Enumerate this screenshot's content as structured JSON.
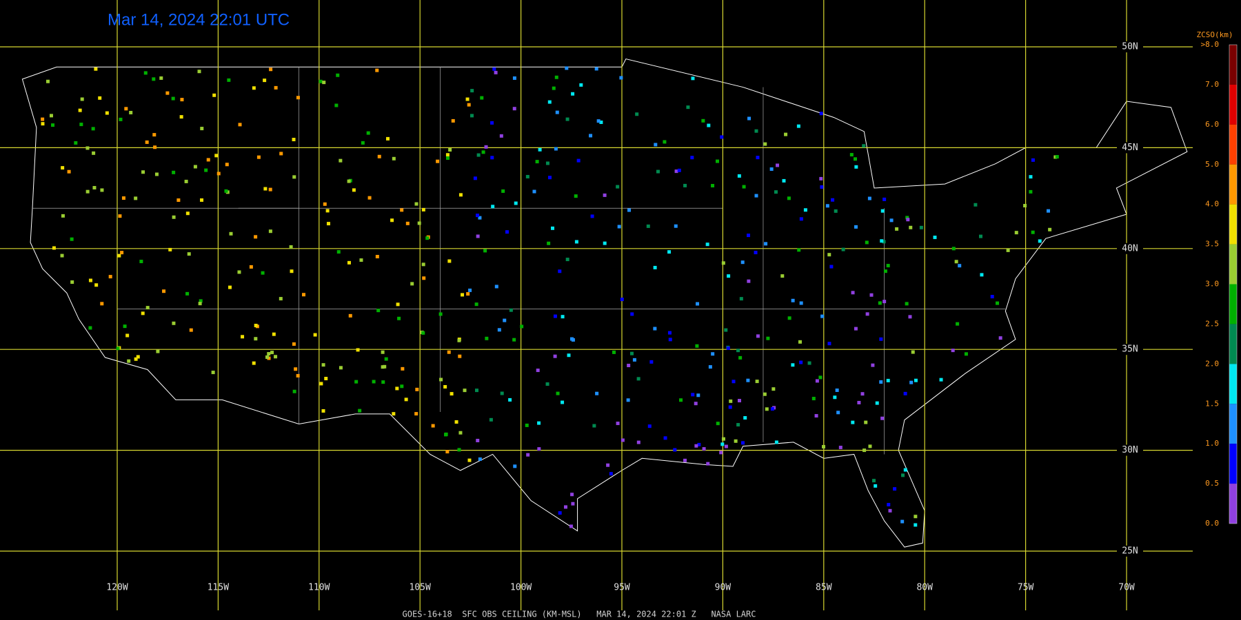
{
  "title": "Mar 14, 2024 22:01 UTC",
  "caption": "GOES-16+18  SFC OBS CEILING (KM-MSL)   MAR 14, 2024 22:01 Z   NASA LARC",
  "lat_labels": [
    "50N",
    "45N",
    "40N",
    "35N",
    "30N",
    "25N"
  ],
  "lon_labels": [
    "120W",
    "115W",
    "110W",
    "105W",
    "100W",
    "95W",
    "90W",
    "85W",
    "80W",
    "75W",
    "70W"
  ],
  "colorbar": {
    "title": "ZCSO(km)",
    "labels": [
      ">8.0",
      "7.0",
      "6.0",
      "5.0",
      "4.0",
      "3.5",
      "3.0",
      "2.5",
      "2.0",
      "1.5",
      "1.0",
      "0.5",
      "0.0"
    ],
    "colors": [
      "#7a0000",
      "#e00000",
      "#ff4000",
      "#ff9900",
      "#f0e000",
      "#9acd32",
      "#00b000",
      "#008a50",
      "#00e8f0",
      "#1e90ff",
      "#0000ff",
      "#9040e0"
    ]
  }
}
